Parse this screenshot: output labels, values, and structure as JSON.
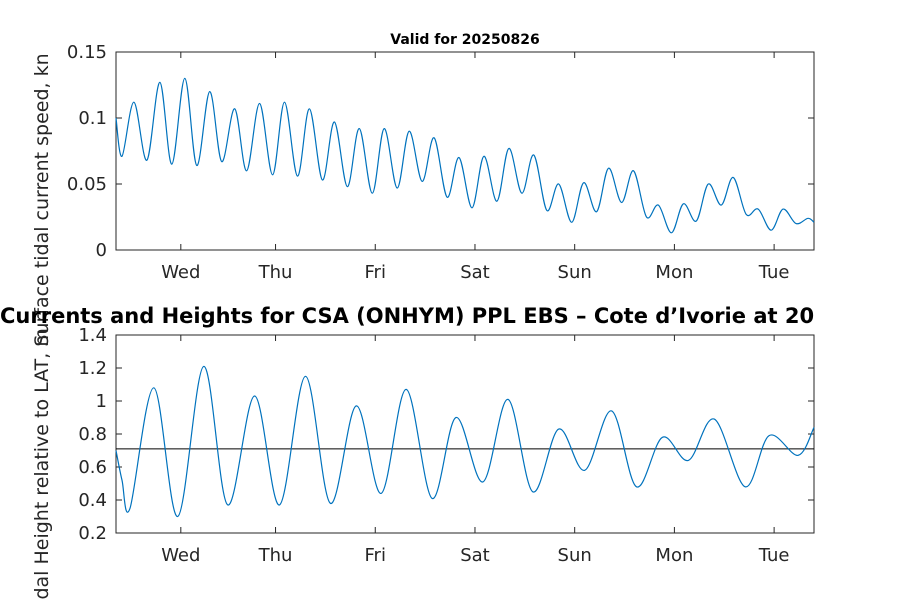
{
  "figure_title": "Currents and Heights for CSA (ONHYM) PPL EBS  – Cote d’Ivorie at 20",
  "colors": {
    "series": "#0072bd",
    "axis": "#262626",
    "reference_line": "#000000",
    "background": "#ffffff"
  },
  "chart_data": [
    {
      "type": "line",
      "title": "Valid for 20250826",
      "ylabel": "Surface tidal current speed, kn",
      "xlabel": "",
      "xlim": [
        0,
        7
      ],
      "ylim": [
        0,
        0.15
      ],
      "yticks": [
        0,
        0.05,
        0.1,
        0.15
      ],
      "ytick_labels": [
        "0",
        "0.05",
        "0.1",
        "0.15"
      ],
      "xticks": [
        0.65,
        1.6,
        2.6,
        3.6,
        4.6,
        5.6,
        6.6
      ],
      "xtick_labels": [
        "Wed",
        "Thu",
        "Fri",
        "Sat",
        "Sun",
        "Mon",
        "Tue"
      ],
      "grid": false,
      "series": [
        {
          "x": [
            0.0,
            0.06,
            0.18,
            0.31,
            0.44,
            0.56,
            0.69,
            0.81,
            0.94,
            1.06,
            1.19,
            1.31,
            1.44,
            1.57,
            1.69,
            1.82,
            1.94,
            2.07,
            2.19,
            2.32,
            2.44,
            2.57,
            2.69,
            2.82,
            2.94,
            3.07,
            3.19,
            3.32,
            3.44,
            3.57,
            3.69,
            3.82,
            3.94,
            4.07,
            4.19,
            4.32,
            4.44,
            4.57,
            4.69,
            4.82,
            4.94,
            5.07,
            5.19,
            5.32,
            5.44,
            5.57,
            5.69,
            5.82,
            5.94,
            6.07,
            6.19,
            6.32,
            6.44,
            6.57,
            6.69,
            6.82,
            6.94,
            7.0
          ],
          "y": [
            0.1,
            0.071,
            0.112,
            0.068,
            0.127,
            0.065,
            0.13,
            0.064,
            0.12,
            0.067,
            0.107,
            0.06,
            0.111,
            0.057,
            0.112,
            0.056,
            0.107,
            0.053,
            0.097,
            0.048,
            0.092,
            0.043,
            0.092,
            0.047,
            0.09,
            0.052,
            0.085,
            0.04,
            0.07,
            0.032,
            0.071,
            0.037,
            0.077,
            0.043,
            0.072,
            0.03,
            0.05,
            0.021,
            0.051,
            0.029,
            0.062,
            0.036,
            0.06,
            0.025,
            0.034,
            0.013,
            0.035,
            0.022,
            0.05,
            0.034,
            0.055,
            0.027,
            0.031,
            0.015,
            0.031,
            0.02,
            0.024,
            0.021
          ]
        }
      ]
    },
    {
      "type": "line",
      "title": "",
      "ylabel": "Tidal Height relative to LAT, m",
      "xlabel": "",
      "xlim": [
        0,
        7
      ],
      "ylim": [
        0.2,
        1.4
      ],
      "yticks": [
        0.2,
        0.4,
        0.6,
        0.8,
        1.0,
        1.2,
        1.4
      ],
      "ytick_labels": [
        "0.2",
        "0.4",
        "0.6",
        "0.8",
        "1",
        "1.2",
        "1.4"
      ],
      "xticks": [
        0.65,
        1.6,
        2.6,
        3.6,
        4.6,
        5.6,
        6.6
      ],
      "xtick_labels": [
        "Wed",
        "Thu",
        "Fri",
        "Sat",
        "Sun",
        "Mon",
        "Tue"
      ],
      "grid": false,
      "reference_line_y": 0.71,
      "series": [
        {
          "x": [
            0.0,
            0.06,
            0.14,
            0.38,
            0.62,
            0.88,
            1.12,
            1.39,
            1.64,
            1.9,
            2.15,
            2.41,
            2.66,
            2.91,
            3.17,
            3.41,
            3.68,
            3.93,
            4.18,
            4.44,
            4.7,
            4.97,
            5.22,
            5.48,
            5.74,
            6.0,
            6.31,
            6.55,
            6.84,
            7.0
          ],
          "y": [
            0.7,
            0.52,
            0.35,
            1.08,
            0.3,
            1.21,
            0.37,
            1.03,
            0.37,
            1.15,
            0.38,
            0.97,
            0.44,
            1.07,
            0.41,
            0.9,
            0.51,
            1.01,
            0.45,
            0.83,
            0.58,
            0.94,
            0.48,
            0.78,
            0.64,
            0.89,
            0.48,
            0.79,
            0.67,
            0.84
          ]
        }
      ]
    }
  ]
}
